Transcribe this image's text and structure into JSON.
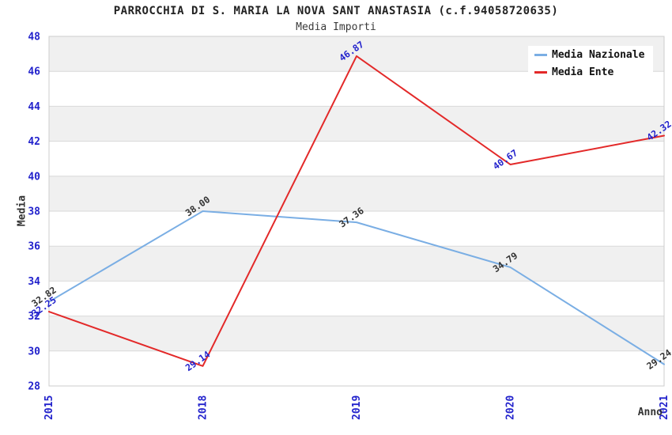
{
  "header": {
    "title": "PARROCCHIA DI S. MARIA LA NOVA SANT ANASTASIA (c.f.94058720635)",
    "subtitle": "Media Importi"
  },
  "chart_data": {
    "type": "line",
    "title": "PARROCCHIA DI S. MARIA LA NOVA SANT ANASTASIA (c.f.94058720635)",
    "subtitle": "Media Importi",
    "xlabel": "Anno",
    "ylabel": "Media",
    "categories": [
      "2015",
      "2018",
      "2019",
      "2020",
      "2021"
    ],
    "series": [
      {
        "name": "Media Nazionale",
        "color": "#7aaee4",
        "label_color": "#333333",
        "values": [
          32.82,
          38.0,
          37.36,
          34.79,
          29.24
        ],
        "labels": [
          "32.82",
          "38.00",
          "37.36",
          "34.79",
          "29.24"
        ]
      },
      {
        "name": "Media Ente",
        "color": "#e32929",
        "label_color": "#2222cc",
        "values": [
          32.25,
          29.14,
          46.87,
          40.67,
          42.32
        ],
        "labels": [
          "32.25",
          "29.14",
          "46.87",
          "40.67",
          "42.32"
        ]
      }
    ],
    "ylim": [
      28,
      48
    ],
    "ytick_step": 2,
    "yticks": [
      "28",
      "30",
      "32",
      "34",
      "36",
      "38",
      "40",
      "42",
      "44",
      "46",
      "48"
    ],
    "grid": true,
    "legend_position": "top-right",
    "styles": {
      "band_color": "#f0f0f0",
      "grid_color": "#d9d9d9",
      "border_color": "#cccccc",
      "tick_label_color": "#2222cc",
      "axis_label_color": "#333333"
    }
  },
  "legend": {
    "items": [
      {
        "label": "Media Nazionale",
        "color": "#7aaee4"
      },
      {
        "label": "Media Ente",
        "color": "#e32929"
      }
    ]
  }
}
